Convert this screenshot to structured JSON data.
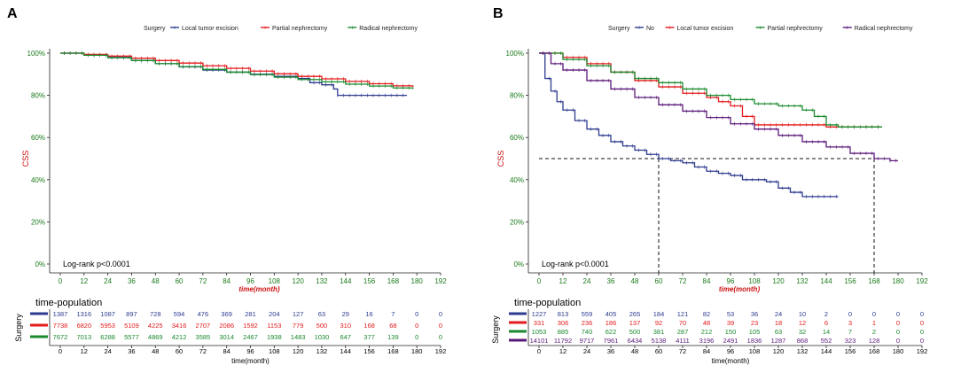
{
  "colors": {
    "blue": "#2e3b8f",
    "red": "#e41a1c",
    "green": "#1a8a2e",
    "purple": "#5b1a7a",
    "axis_text": "#1a7a1a",
    "ylab": "#cc1111",
    "xlab": "#cc1111",
    "dark": "#222222"
  },
  "chart_data": [
    {
      "type": "line",
      "panel_label": "A",
      "legend_title": "Surgery",
      "legend": [
        {
          "name": "Local tumor excision",
          "color": "blue"
        },
        {
          "name": "Partial nephrectomy",
          "color": "red"
        },
        {
          "name": "Radical nephrectomy",
          "color": "green"
        }
      ],
      "ylabel": "CSS",
      "xlabel": "time(month)",
      "ylim": [
        0,
        100
      ],
      "xlim": [
        0,
        192
      ],
      "xticks": [
        0,
        12,
        24,
        36,
        48,
        60,
        72,
        84,
        96,
        108,
        120,
        132,
        144,
        156,
        168,
        180,
        192
      ],
      "yticks": [
        0,
        20,
        40,
        60,
        80,
        100
      ],
      "ytick_labels": [
        "0%",
        "20%",
        "40%",
        "60%",
        "80%",
        "100%"
      ],
      "annotation": "Log-rank   p<0.0001",
      "series": [
        {
          "name": "Local tumor excision",
          "color": "blue",
          "style": "step",
          "x": [
            0,
            12,
            24,
            36,
            48,
            60,
            72,
            84,
            96,
            108,
            120,
            126,
            132,
            138,
            140,
            150,
            160,
            170,
            175
          ],
          "y": [
            100,
            99,
            98,
            96.5,
            95,
            93.5,
            92,
            91,
            90,
            89,
            88,
            86,
            85,
            83,
            80,
            80,
            80,
            80,
            80
          ]
        },
        {
          "name": "Partial nephrectomy",
          "color": "red",
          "style": "step",
          "x": [
            0,
            12,
            24,
            36,
            48,
            60,
            72,
            84,
            96,
            108,
            120,
            132,
            144,
            156,
            168,
            178
          ],
          "y": [
            100,
            99.4,
            98.6,
            97.6,
            96.5,
            95.3,
            94,
            92.8,
            91.5,
            90.2,
            89,
            87.8,
            86.6,
            85.5,
            84.5,
            84
          ]
        },
        {
          "name": "Radical nephrectomy",
          "color": "green",
          "style": "step",
          "x": [
            0,
            12,
            24,
            36,
            48,
            60,
            72,
            84,
            96,
            108,
            120,
            132,
            144,
            156,
            168,
            178
          ],
          "y": [
            100,
            99,
            97.8,
            96.5,
            95,
            93.6,
            92.3,
            91,
            89.8,
            88.6,
            87.5,
            86.4,
            85.3,
            84.4,
            83.5,
            83
          ]
        }
      ],
      "table": {
        "title": "time-population",
        "ylabel": "Surgery",
        "xlabel": "time(month)",
        "rows": [
          {
            "color": "blue",
            "values": [
              "1387",
              "1316",
              "1087",
              "897",
              "728",
              "594",
              "476",
              "369",
              "281",
              "204",
              "127",
              "63",
              "29",
              "16",
              "7",
              "0",
              "0"
            ]
          },
          {
            "color": "red",
            "values": [
              "7738",
              "6820",
              "5953",
              "5109",
              "4225",
              "3416",
              "2707",
              "2086",
              "1592",
              "1153",
              "779",
              "500",
              "310",
              "168",
              "68",
              "0",
              "0"
            ]
          },
          {
            "color": "green",
            "values": [
              "7672",
              "7013",
              "6288",
              "5577",
              "4869",
              "4212",
              "3585",
              "3014",
              "2467",
              "1938",
              "1483",
              "1030",
              "647",
              "377",
              "139",
              "0",
              "0"
            ]
          }
        ]
      }
    },
    {
      "type": "line",
      "panel_label": "B",
      "legend_title": "Surgery",
      "legend": [
        {
          "name": "No",
          "color": "blue"
        },
        {
          "name": "Local tumor excision",
          "color": "red"
        },
        {
          "name": "Partial nephrectomy",
          "color": "green"
        },
        {
          "name": "Radical nephrectomy",
          "color": "purple"
        }
      ],
      "ylabel": "CSS",
      "xlabel": "time(month)",
      "ylim": [
        0,
        100
      ],
      "xlim": [
        0,
        192
      ],
      "xticks": [
        0,
        12,
        24,
        36,
        48,
        60,
        72,
        84,
        96,
        108,
        120,
        132,
        144,
        156,
        168,
        180,
        192
      ],
      "yticks": [
        0,
        20,
        40,
        60,
        80,
        100
      ],
      "ytick_labels": [
        "0%",
        "20%",
        "40%",
        "60%",
        "80%",
        "100%"
      ],
      "annotation": "Log-rank   p<0.0001",
      "median_line": {
        "y": 50,
        "x_points": [
          60,
          168
        ]
      },
      "series": [
        {
          "name": "No",
          "color": "blue",
          "style": "step",
          "x": [
            0,
            3,
            6,
            9,
            12,
            18,
            24,
            30,
            36,
            42,
            48,
            54,
            60,
            66,
            72,
            78,
            84,
            90,
            96,
            102,
            108,
            114,
            120,
            126,
            132,
            138,
            144,
            150
          ],
          "y": [
            100,
            88,
            82,
            77,
            73,
            68,
            64,
            61,
            58,
            56,
            54,
            52,
            50,
            49,
            48,
            46,
            44,
            43,
            42,
            40,
            40,
            39,
            36,
            34,
            32,
            32,
            32,
            32
          ]
        },
        {
          "name": "Local tumor excision",
          "color": "red",
          "style": "step",
          "x": [
            0,
            12,
            24,
            36,
            48,
            60,
            72,
            84,
            90,
            96,
            102,
            108,
            120,
            132,
            144,
            156,
            168,
            172
          ],
          "y": [
            100,
            98,
            95,
            91,
            87,
            84,
            81,
            79,
            77,
            75,
            70,
            66,
            66,
            66,
            65,
            65,
            65,
            65
          ]
        },
        {
          "name": "Partial nephrectomy",
          "color": "green",
          "style": "step",
          "x": [
            0,
            12,
            24,
            36,
            48,
            60,
            72,
            84,
            96,
            108,
            120,
            132,
            138,
            144,
            150,
            160,
            168,
            172
          ],
          "y": [
            100,
            97,
            94,
            91,
            88,
            86,
            83,
            80,
            78,
            76,
            75,
            73,
            70,
            66,
            65,
            65,
            65,
            65
          ]
        },
        {
          "name": "Radical nephrectomy",
          "color": "purple",
          "style": "step",
          "x": [
            0,
            6,
            12,
            24,
            36,
            48,
            60,
            72,
            84,
            96,
            108,
            120,
            132,
            144,
            156,
            168,
            176,
            180
          ],
          "y": [
            100,
            95,
            92,
            87,
            83,
            79,
            75.5,
            72.5,
            69.5,
            66.5,
            64,
            61,
            58,
            55.5,
            52.5,
            50,
            49,
            49
          ]
        }
      ],
      "table": {
        "title": "time-population",
        "ylabel": "Surgery",
        "xlabel": "time(month)",
        "rows": [
          {
            "color": "blue",
            "values": [
              "1227",
              "813",
              "559",
              "405",
              "265",
              "184",
              "121",
              "82",
              "53",
              "36",
              "24",
              "10",
              "2",
              "0",
              "0",
              "0",
              "0"
            ]
          },
          {
            "color": "red",
            "values": [
              "331",
              "306",
              "236",
              "186",
              "137",
              "92",
              "70",
              "48",
              "39",
              "23",
              "18",
              "12",
              "6",
              "3",
              "1",
              "0",
              "0"
            ]
          },
          {
            "color": "green",
            "values": [
              "1053",
              "885",
              "740",
              "622",
              "500",
              "381",
              "287",
              "212",
              "150",
              "105",
              "63",
              "32",
              "14",
              "7",
              "2",
              "0",
              "0"
            ]
          },
          {
            "color": "purple",
            "values": [
              "14101",
              "11792",
              "9717",
              "7961",
              "6434",
              "5138",
              "4111",
              "3196",
              "2491",
              "1836",
              "1287",
              "868",
              "552",
              "323",
              "128",
              "0",
              "0"
            ]
          }
        ]
      }
    }
  ]
}
